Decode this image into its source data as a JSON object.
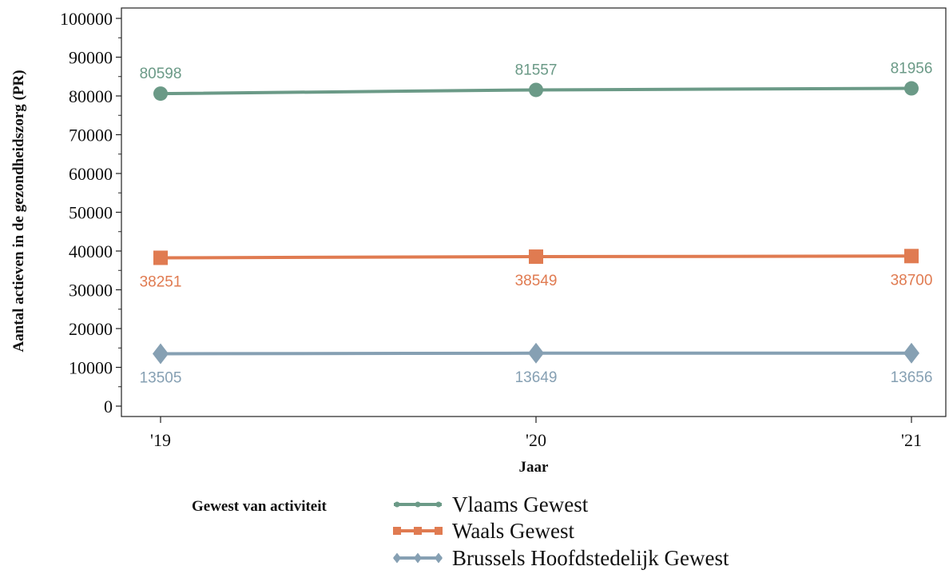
{
  "chart_data": {
    "type": "line",
    "title": "",
    "xlabel": "Jaar",
    "ylabel": "Aantal actieven in de gezondheidszorg (PR)",
    "categories": [
      "'19",
      "'20",
      "'21"
    ],
    "ylim": [
      0,
      100000
    ],
    "yticks": [
      0,
      10000,
      20000,
      30000,
      40000,
      50000,
      60000,
      70000,
      80000,
      90000,
      100000
    ],
    "grid": false,
    "legend_title": "Gewest van activiteit",
    "legend_position": "bottom",
    "series": [
      {
        "name": "Vlaams Gewest",
        "values": [
          80598,
          81557,
          81956
        ],
        "color": "#6b9a87",
        "marker": "circle",
        "label_position": "above"
      },
      {
        "name": "Waals Gewest",
        "values": [
          38251,
          38549,
          38700
        ],
        "color": "#e07b51",
        "marker": "square",
        "label_position": "below"
      },
      {
        "name": "Brussels Hoofdstedelijk Gewest",
        "values": [
          13505,
          13649,
          13656
        ],
        "color": "#86a0b3",
        "marker": "diamond",
        "label_position": "below"
      }
    ]
  }
}
